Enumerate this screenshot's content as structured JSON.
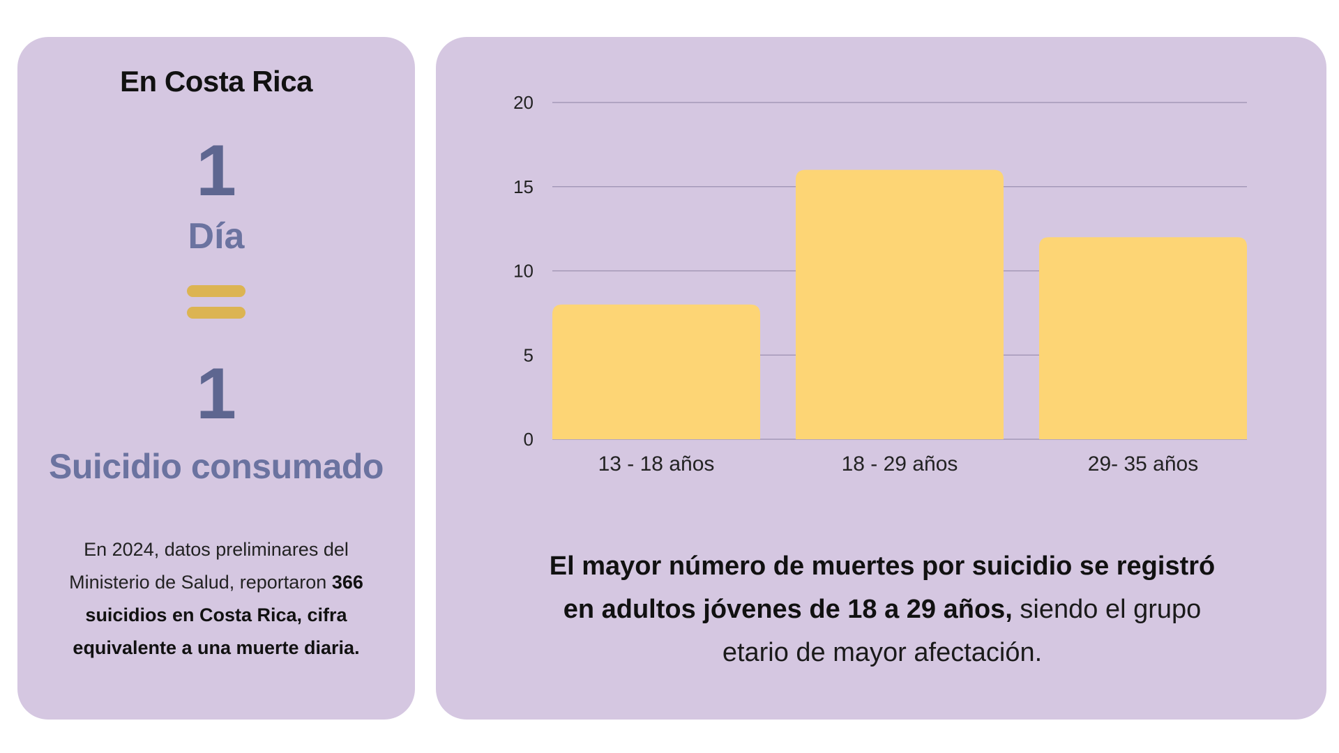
{
  "left_card": {
    "heading": "En Costa Rica",
    "number_top": "1",
    "dia_label": "Día",
    "number_bottom": "1",
    "suicidio_label": "Suicidio consumado",
    "paragraph_plain_1": "En 2024, datos preliminares del Ministerio de Salud, reportaron ",
    "paragraph_bold": "366 suicidios en Costa Rica, cifra equivalente a una muerte diaria.",
    "equals_color": "#dcb452",
    "accent_color": "#6b73a0"
  },
  "caption": {
    "bold": "El mayor número de muertes por suicidio se registró en adultos jóvenes de 18 a 29 años,",
    "plain": " siendo el grupo etario de mayor afectación."
  },
  "colors": {
    "card_background": "#d5c7e1",
    "bar_fill": "#fdd575",
    "gridline": "#9b8fb0"
  },
  "chart_data": {
    "type": "bar",
    "categories": [
      "13 - 18 años",
      "18 - 29 años",
      "29- 35 años"
    ],
    "values": [
      8,
      16,
      12
    ],
    "yticks": [
      "0",
      "5",
      "10",
      "15",
      "20"
    ],
    "ylim": [
      0,
      20
    ],
    "grid": true,
    "title": "",
    "xlabel": "",
    "ylabel": ""
  }
}
